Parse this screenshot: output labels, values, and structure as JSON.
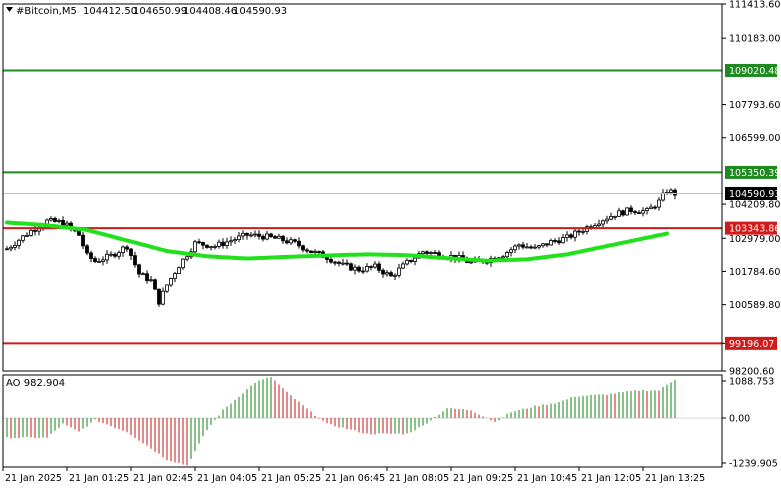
{
  "header": {
    "symbol": "#Bitcoin,M5",
    "open": "104412.50",
    "high": "104650.99",
    "low": "104408.46",
    "close": "104590.93"
  },
  "colors": {
    "axis": "#000000",
    "candle_body": "#000000",
    "ma_line": "#22e01c",
    "support_resistance_green": "#1f8a1f",
    "support_resistance_red": "#d11a1a",
    "current_price_line": "#c0c0c0",
    "ao_up": "#3a9a3a",
    "ao_down": "#d23c3c"
  },
  "chart_data": [
    {
      "type": "candlestick",
      "title": "#Bitcoin,M5",
      "ylim": [
        98200.6,
        111413.6
      ],
      "y_ticks": [
        "111413.60",
        "110183.00",
        "107793.60",
        "106599.00",
        "104209.80",
        "102979.00",
        "101784.60",
        "100589.80",
        "99196.00",
        "98200.60"
      ],
      "x_ticks": [
        "21 Jan 2025",
        "21 Jan 01:25",
        "21 Jan 02:45",
        "21 Jan 04:05",
        "21 Jan 05:25",
        "21 Jan 06:45",
        "21 Jan 08:05",
        "21 Jan 09:25",
        "21 Jan 10:45",
        "21 Jan 12:05",
        "21 Jan 13:25"
      ],
      "x_count": 170,
      "close_anchors": [
        [
          0,
          102600
        ],
        [
          6,
          103250
        ],
        [
          10,
          103600
        ],
        [
          14,
          103550
        ],
        [
          18,
          103100
        ],
        [
          20,
          102350
        ],
        [
          22,
          102150
        ],
        [
          26,
          102350
        ],
        [
          30,
          102700
        ],
        [
          33,
          101700
        ],
        [
          36,
          101450
        ],
        [
          38,
          100700
        ],
        [
          40,
          101300
        ],
        [
          43,
          102000
        ],
        [
          47,
          102800
        ],
        [
          52,
          102700
        ],
        [
          56,
          102900
        ],
        [
          60,
          103100
        ],
        [
          64,
          103050
        ],
        [
          68,
          102950
        ],
        [
          72,
          102800
        ],
        [
          76,
          102500
        ],
        [
          80,
          102300
        ],
        [
          84,
          102000
        ],
        [
          88,
          101850
        ],
        [
          92,
          101950
        ],
        [
          96,
          101600
        ],
        [
          100,
          102100
        ],
        [
          104,
          102500
        ],
        [
          108,
          102400
        ],
        [
          112,
          102300
        ],
        [
          116,
          102100
        ],
        [
          120,
          102200
        ],
        [
          124,
          102400
        ],
        [
          128,
          102750
        ],
        [
          132,
          102600
        ],
        [
          136,
          102850
        ],
        [
          140,
          103000
        ],
        [
          144,
          103300
        ],
        [
          148,
          103600
        ],
        [
          152,
          103850
        ],
        [
          156,
          104000
        ],
        [
          160,
          103950
        ],
        [
          163,
          104300
        ],
        [
          165,
          104700
        ],
        [
          167,
          104590
        ]
      ],
      "series": [
        {
          "name": "",
          "type": "moving_average",
          "anchors": [
            [
              0,
              103550
            ],
            [
              10,
              103450
            ],
            [
              20,
              103280
            ],
            [
              30,
              102900
            ],
            [
              40,
              102520
            ],
            [
              50,
              102330
            ],
            [
              60,
              102250
            ],
            [
              70,
              102310
            ],
            [
              80,
              102360
            ],
            [
              90,
              102400
            ],
            [
              100,
              102370
            ],
            [
              110,
              102260
            ],
            [
              120,
              102170
            ],
            [
              130,
              102220
            ],
            [
              140,
              102400
            ],
            [
              150,
              102700
            ],
            [
              160,
              103000
            ],
            [
              165,
              103150
            ]
          ]
        }
      ],
      "levels": [
        {
          "label": "109020.48",
          "value": 109020.48,
          "color": "#1f8a1f"
        },
        {
          "label": "105350.39",
          "value": 105350.39,
          "color": "#1f8a1f"
        },
        {
          "label": "103343.86",
          "value": 103343.86,
          "color": "#d11a1a"
        },
        {
          "label": "99196.07",
          "value": 99196.07,
          "color": "#d11a1a"
        }
      ],
      "current_price": {
        "label": "104590.93",
        "value": 104590.93
      }
    },
    {
      "type": "histogram",
      "title": "AO 982.904",
      "ylim": [
        -1239.905,
        1088.753
      ],
      "y_ticks": [
        "1088.753",
        "0.00",
        "-1239.905"
      ],
      "anchors": [
        [
          0,
          -500
        ],
        [
          10,
          -500
        ],
        [
          14,
          -150
        ],
        [
          18,
          -350
        ],
        [
          22,
          -50
        ],
        [
          30,
          -350
        ],
        [
          40,
          -1050
        ],
        [
          45,
          -1200
        ],
        [
          50,
          -300
        ],
        [
          54,
          200
        ],
        [
          62,
          900
        ],
        [
          66,
          1040
        ],
        [
          70,
          650
        ],
        [
          76,
          150
        ],
        [
          80,
          -150
        ],
        [
          90,
          -400
        ],
        [
          100,
          -400
        ],
        [
          104,
          -200
        ],
        [
          110,
          250
        ],
        [
          116,
          200
        ],
        [
          122,
          -100
        ],
        [
          126,
          150
        ],
        [
          132,
          300
        ],
        [
          138,
          400
        ],
        [
          142,
          550
        ],
        [
          150,
          600
        ],
        [
          158,
          700
        ],
        [
          163,
          700
        ],
        [
          167,
          982
        ]
      ]
    }
  ]
}
